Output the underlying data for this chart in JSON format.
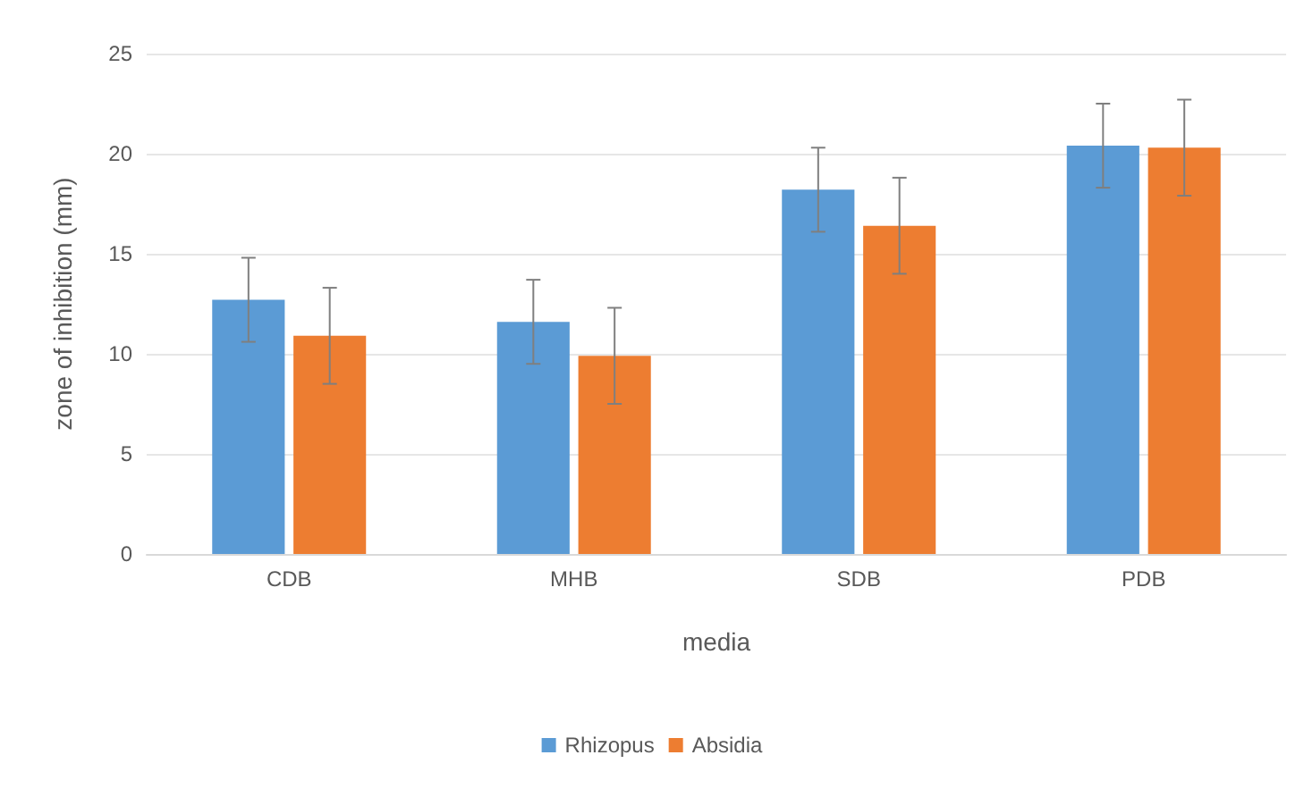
{
  "chart_data": {
    "type": "bar",
    "xlabel": "media",
    "ylabel": "zone of inhibition (mm)",
    "categories": [
      "CDB",
      "MHB",
      "SDB",
      "PDB"
    ],
    "series": [
      {
        "name": "Rhizopus",
        "color": "#5b9bd5",
        "values": [
          12.7,
          11.6,
          18.2,
          20.4
        ],
        "errors": [
          2.1,
          2.1,
          2.1,
          2.1
        ]
      },
      {
        "name": "Absidia",
        "color": "#ed7d31",
        "values": [
          10.9,
          9.9,
          16.4,
          20.3
        ],
        "errors": [
          2.4,
          2.4,
          2.4,
          2.4
        ]
      }
    ],
    "ylim": [
      0,
      25
    ],
    "yticks": [
      0,
      5,
      10,
      15,
      20,
      25
    ],
    "grid": "y",
    "legend": "bottom"
  }
}
